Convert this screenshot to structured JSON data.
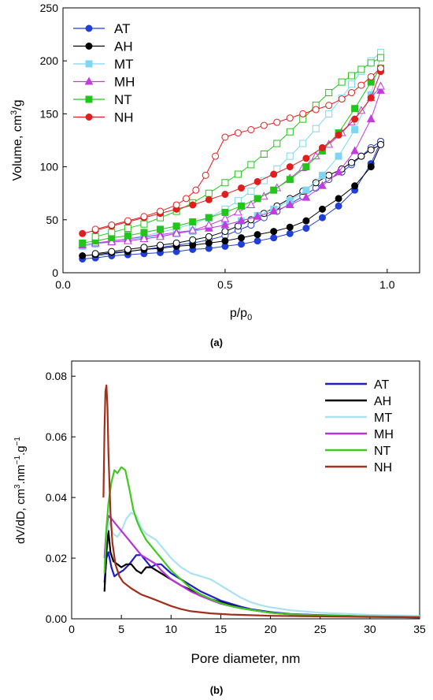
{
  "panels": {
    "a_label": "(a)",
    "b_label": "(b)"
  },
  "chart_data": [
    {
      "type": "scatter",
      "xlabel": "p/p",
      "xlabel_sub": "0",
      "ylabel_main": "Volume, cm",
      "ylabel_sup": "3",
      "ylabel_tail": "/g",
      "xlim": [
        0.0,
        1.1
      ],
      "ylim": [
        0,
        250
      ],
      "xticks": [
        "0.0",
        "0.5",
        "1.0"
      ],
      "xtick_values": [
        0.0,
        0.5,
        1.0
      ],
      "yticks": [
        "0",
        "50",
        "100",
        "150",
        "200",
        "250"
      ],
      "ytick_values": [
        0,
        50,
        100,
        150,
        200,
        250
      ],
      "legend_position": "top-left",
      "series": [
        {
          "name": "AT",
          "color": "#1f3fd6",
          "marker": "circle",
          "adsorption": {
            "x": [
              0.06,
              0.1,
              0.15,
              0.2,
              0.25,
              0.3,
              0.35,
              0.4,
              0.45,
              0.5,
              0.55,
              0.6,
              0.65,
              0.7,
              0.75,
              0.8,
              0.85,
              0.9,
              0.95,
              0.98
            ],
            "y": [
              13,
              14,
              16,
              17,
              18,
              19,
              20,
              22,
              23,
              25,
              27,
              30,
              33,
              37,
              42,
              52,
              63,
              78,
              103,
              124
            ]
          },
          "desorption": {
            "x": [
              0.98,
              0.95,
              0.92,
              0.89,
              0.86,
              0.82,
              0.78,
              0.74,
              0.7,
              0.66,
              0.62,
              0.58,
              0.54,
              0.5,
              0.45,
              0.4,
              0.35,
              0.3,
              0.25,
              0.2,
              0.15,
              0.1
            ],
            "y": [
              124,
              118,
              110,
              102,
              95,
              88,
              80,
              72,
              65,
              58,
              52,
              45,
              40,
              35,
              31,
              28,
              26,
              24,
              22,
              20,
              18,
              16
            ]
          }
        },
        {
          "name": "AH",
          "color": "#000000",
          "marker": "circle",
          "adsorption": {
            "x": [
              0.06,
              0.1,
              0.15,
              0.2,
              0.25,
              0.3,
              0.35,
              0.4,
              0.45,
              0.5,
              0.55,
              0.6,
              0.65,
              0.7,
              0.75,
              0.8,
              0.85,
              0.9,
              0.95,
              0.98
            ],
            "y": [
              16,
              17,
              19,
              20,
              22,
              23,
              25,
              26,
              28,
              30,
              33,
              36,
              39,
              43,
              49,
              60,
              70,
              82,
              100,
              121
            ]
          },
          "desorption": {
            "x": [
              0.98,
              0.95,
              0.92,
              0.89,
              0.86,
              0.82,
              0.78,
              0.74,
              0.7,
              0.66,
              0.62,
              0.58,
              0.54,
              0.5,
              0.45,
              0.4,
              0.35,
              0.3,
              0.25,
              0.2,
              0.15,
              0.1
            ],
            "y": [
              121,
              116,
              110,
              104,
              98,
              92,
              85,
              77,
              70,
              63,
              56,
              50,
              44,
              39,
              34,
              31,
              28,
              26,
              24,
              22,
              20,
              18
            ]
          }
        },
        {
          "name": "MT",
          "color": "#7fd6f2",
          "marker": "square",
          "adsorption": {
            "x": [
              0.06,
              0.1,
              0.15,
              0.2,
              0.25,
              0.3,
              0.35,
              0.4,
              0.45,
              0.5,
              0.55,
              0.6,
              0.65,
              0.7,
              0.75,
              0.8,
              0.85,
              0.9,
              0.95,
              0.98
            ],
            "y": [
              25,
              27,
              29,
              31,
              33,
              35,
              37,
              39,
              42,
              45,
              49,
              54,
              60,
              68,
              78,
              92,
              110,
              135,
              168,
              205
            ]
          },
          "desorption": {
            "x": [
              0.98,
              0.95,
              0.92,
              0.89,
              0.86,
              0.82,
              0.78,
              0.74,
              0.7,
              0.66,
              0.62,
              0.58,
              0.54,
              0.5,
              0.45,
              0.4,
              0.35,
              0.3,
              0.25,
              0.2,
              0.15,
              0.1
            ],
            "y": [
              208,
              200,
              190,
              178,
              165,
              150,
              136,
              122,
              110,
              98,
              87,
              77,
              68,
              60,
              52,
              46,
              42,
              38,
              35,
              32,
              30,
              28
            ]
          }
        },
        {
          "name": "MH",
          "color": "#c43be0",
          "marker": "triangle",
          "adsorption": {
            "x": [
              0.06,
              0.1,
              0.15,
              0.2,
              0.25,
              0.3,
              0.35,
              0.4,
              0.45,
              0.5,
              0.55,
              0.6,
              0.65,
              0.7,
              0.75,
              0.8,
              0.85,
              0.9,
              0.95,
              0.98
            ],
            "y": [
              26,
              28,
              30,
              32,
              34,
              36,
              38,
              40,
              42,
              45,
              49,
              53,
              58,
              64,
              71,
              82,
              95,
              115,
              145,
              172
            ]
          },
          "desorption": {
            "x": [
              0.98,
              0.95,
              0.92,
              0.89,
              0.86,
              0.82,
              0.78,
              0.74,
              0.7,
              0.66,
              0.62,
              0.58,
              0.54,
              0.5,
              0.45,
              0.4,
              0.35,
              0.3,
              0.25,
              0.2,
              0.15,
              0.1
            ],
            "y": [
              176,
              165,
              153,
              142,
              132,
              121,
              110,
              99,
              89,
              80,
              72,
              64,
              57,
              51,
              45,
              40,
              37,
              34,
              32,
              30,
              29,
              28
            ]
          }
        },
        {
          "name": "NT",
          "color": "#22c51a",
          "marker": "square",
          "adsorption": {
            "x": [
              0.06,
              0.1,
              0.15,
              0.2,
              0.25,
              0.3,
              0.35,
              0.4,
              0.45,
              0.5,
              0.55,
              0.6,
              0.65,
              0.7,
              0.75,
              0.8,
              0.85,
              0.9,
              0.95,
              0.98
            ],
            "y": [
              28,
              30,
              33,
              35,
              38,
              41,
              44,
              48,
              52,
              57,
              63,
              70,
              78,
              88,
              100,
              115,
              132,
              155,
              180,
              193
            ]
          },
          "desorption": {
            "x": [
              0.98,
              0.95,
              0.92,
              0.89,
              0.86,
              0.82,
              0.78,
              0.74,
              0.7,
              0.66,
              0.62,
              0.58,
              0.54,
              0.5,
              0.45,
              0.4,
              0.35,
              0.3,
              0.25,
              0.2,
              0.15,
              0.1
            ],
            "y": [
              203,
              198,
              192,
              186,
              180,
              170,
              158,
              145,
              133,
              122,
              112,
              102,
              93,
              85,
              75,
              66,
              58,
              52,
              46,
              42,
              38,
              34
            ]
          }
        },
        {
          "name": "NH",
          "color": "#e01e1e",
          "marker": "circle",
          "adsorption": {
            "x": [
              0.06,
              0.1,
              0.15,
              0.2,
              0.25,
              0.3,
              0.35,
              0.4,
              0.45,
              0.5,
              0.55,
              0.6,
              0.65,
              0.7,
              0.75,
              0.8,
              0.85,
              0.9,
              0.95,
              0.98
            ],
            "y": [
              37,
              40,
              44,
              48,
              52,
              56,
              60,
              64,
              69,
              74,
              80,
              86,
              93,
              100,
              108,
              118,
              130,
              145,
              165,
              190
            ]
          },
          "desorption": {
            "x": [
              0.98,
              0.95,
              0.92,
              0.89,
              0.86,
              0.82,
              0.78,
              0.74,
              0.7,
              0.66,
              0.62,
              0.58,
              0.54,
              0.5,
              0.47,
              0.44,
              0.41,
              0.38,
              0.35,
              0.3,
              0.25,
              0.2,
              0.15,
              0.1
            ],
            "y": [
              193,
              185,
              177,
              170,
              164,
              158,
              154,
              150,
              146,
              142,
              139,
              135,
              132,
              128,
              110,
              92,
              78,
              70,
              64,
              58,
              53,
              49,
              45,
              41
            ]
          }
        }
      ]
    },
    {
      "type": "line",
      "xlabel": "Pore diameter, nm",
      "ylabel_main": "dV/dD, cm",
      "ylabel_sup1": "3",
      "ylabel_mid": ".nm",
      "ylabel_sup2": "−1",
      "ylabel_tail": ".g",
      "ylabel_sup3": "−1",
      "xlim": [
        0,
        35
      ],
      "ylim": [
        0,
        0.085
      ],
      "xticks": [
        "0",
        "5",
        "10",
        "15",
        "20",
        "25",
        "30",
        "35"
      ],
      "xtick_values": [
        0,
        5,
        10,
        15,
        20,
        25,
        30,
        35
      ],
      "yticks": [
        "0.00",
        "0.02",
        "0.04",
        "0.06",
        "0.08"
      ],
      "ytick_values": [
        0,
        0.02,
        0.04,
        0.06,
        0.08
      ],
      "legend_position": "top-right",
      "series": [
        {
          "name": "AT",
          "color": "#1f1fc9",
          "x": [
            3.3,
            3.5,
            3.7,
            4.0,
            4.3,
            4.7,
            5.2,
            5.8,
            6.5,
            7.0,
            7.5,
            8.0,
            8.5,
            9.0,
            10,
            11,
            12,
            13,
            14,
            15,
            16,
            17,
            18,
            20,
            22,
            25,
            30,
            35
          ],
          "y": [
            0.012,
            0.02,
            0.022,
            0.017,
            0.014,
            0.015,
            0.016,
            0.018,
            0.021,
            0.021,
            0.019,
            0.017,
            0.018,
            0.018,
            0.015,
            0.013,
            0.011,
            0.009,
            0.0075,
            0.006,
            0.005,
            0.004,
            0.0032,
            0.0022,
            0.0016,
            0.0012,
            0.0008,
            0.0006
          ]
        },
        {
          "name": "AH",
          "color": "#000000",
          "x": [
            3.3,
            3.5,
            3.7,
            3.9,
            4.2,
            4.6,
            5.0,
            5.5,
            6.0,
            6.5,
            7.0,
            7.5,
            8.0,
            8.5,
            9.0,
            10,
            11,
            12,
            13,
            14,
            15,
            16,
            17,
            18,
            20,
            22,
            25,
            30,
            35
          ],
          "y": [
            0.009,
            0.022,
            0.029,
            0.022,
            0.019,
            0.018,
            0.017,
            0.018,
            0.018,
            0.016,
            0.015,
            0.017,
            0.017,
            0.016,
            0.015,
            0.013,
            0.011,
            0.0095,
            0.008,
            0.0065,
            0.0055,
            0.0045,
            0.0035,
            0.003,
            0.002,
            0.0015,
            0.001,
            0.0007,
            0.0005
          ]
        },
        {
          "name": "MT",
          "color": "#a9e3f3",
          "x": [
            3.3,
            3.5,
            3.8,
            4.2,
            4.6,
            5.0,
            5.5,
            6.0,
            6.5,
            7.0,
            7.5,
            8.0,
            8.5,
            9.0,
            10,
            11,
            12,
            13,
            14,
            15,
            16,
            17,
            18,
            19,
            20,
            22,
            25,
            30,
            35
          ],
          "y": [
            0.018,
            0.028,
            0.032,
            0.028,
            0.027,
            0.029,
            0.033,
            0.035,
            0.034,
            0.03,
            0.028,
            0.027,
            0.026,
            0.024,
            0.02,
            0.017,
            0.015,
            0.014,
            0.013,
            0.011,
            0.009,
            0.007,
            0.0055,
            0.0045,
            0.0038,
            0.0028,
            0.002,
            0.0013,
            0.001
          ]
        },
        {
          "name": "MH",
          "color": "#b832d8",
          "x": [
            3.3,
            3.5,
            3.7,
            4.0,
            4.5,
            5.0,
            5.5,
            6.0,
            6.5,
            7.0,
            7.5,
            8.0,
            8.5,
            9.0,
            10,
            11,
            12,
            13,
            14,
            15,
            16,
            17,
            18,
            20,
            22,
            25,
            30,
            35
          ],
          "y": [
            0.02,
            0.03,
            0.034,
            0.033,
            0.031,
            0.029,
            0.027,
            0.025,
            0.023,
            0.021,
            0.02,
            0.019,
            0.018,
            0.016,
            0.013,
            0.011,
            0.009,
            0.0075,
            0.0062,
            0.005,
            0.0042,
            0.0035,
            0.003,
            0.002,
            0.0015,
            0.0011,
            0.0008,
            0.0006
          ]
        },
        {
          "name": "NT",
          "color": "#3ecb1e",
          "x": [
            3.3,
            3.5,
            3.7,
            4.0,
            4.3,
            4.6,
            5.0,
            5.4,
            5.8,
            6.2,
            6.6,
            7.0,
            7.5,
            8.0,
            8.5,
            9.0,
            10,
            11,
            12,
            13,
            14,
            15,
            16,
            17,
            18,
            20,
            22,
            25,
            30,
            35
          ],
          "y": [
            0.015,
            0.03,
            0.038,
            0.045,
            0.049,
            0.048,
            0.05,
            0.049,
            0.043,
            0.036,
            0.032,
            0.029,
            0.026,
            0.024,
            0.022,
            0.02,
            0.016,
            0.013,
            0.01,
            0.008,
            0.0065,
            0.0052,
            0.0042,
            0.0035,
            0.003,
            0.002,
            0.0015,
            0.0011,
            0.0008,
            0.0006
          ]
        },
        {
          "name": "NH",
          "color": "#a0301c",
          "x": [
            3.2,
            3.3,
            3.4,
            3.5,
            3.6,
            3.7,
            3.9,
            4.1,
            4.4,
            4.8,
            5.2,
            6.0,
            7.0,
            8.0,
            9.0,
            10,
            11,
            12,
            14,
            16,
            18,
            20,
            25,
            30,
            35
          ],
          "y": [
            0.04,
            0.062,
            0.075,
            0.077,
            0.07,
            0.055,
            0.035,
            0.025,
            0.018,
            0.014,
            0.012,
            0.01,
            0.008,
            0.0068,
            0.0055,
            0.0042,
            0.0032,
            0.0025,
            0.0018,
            0.0014,
            0.0012,
            0.001,
            0.0008,
            0.0006,
            0.0005
          ]
        }
      ]
    }
  ]
}
